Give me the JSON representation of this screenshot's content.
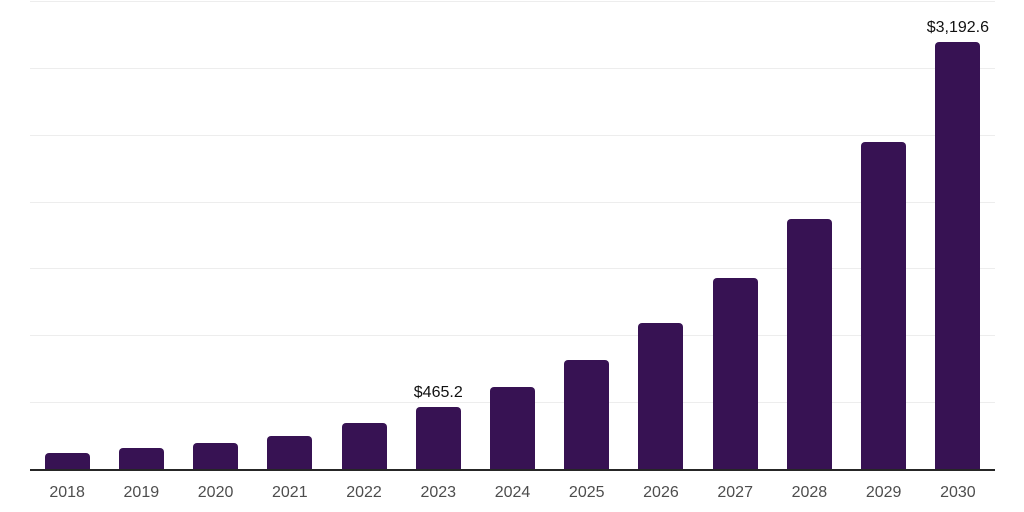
{
  "chart_data": {
    "type": "bar",
    "title": "",
    "xlabel": "",
    "ylabel": "",
    "categories": [
      "2018",
      "2019",
      "2020",
      "2021",
      "2022",
      "2023",
      "2024",
      "2025",
      "2026",
      "2027",
      "2028",
      "2029",
      "2030"
    ],
    "values": [
      119,
      156,
      197,
      245,
      347,
      465.2,
      617,
      818,
      1090,
      1425,
      1870,
      2445,
      3192.6
    ],
    "bar_labels": [
      "",
      "",
      "",
      "",
      "",
      "$465.2",
      "",
      "",
      "",
      "",
      "",
      "",
      "$3,192.6"
    ],
    "ylim": [
      0,
      3500
    ],
    "grid_interval": 500,
    "grid": "horizontal",
    "legend_position": "none",
    "y_axis_tick_labels_visible": false,
    "colors": {
      "bar": "#371253",
      "axis_line": "#262626",
      "gridline": "#ededed",
      "tick_label": "#4d4d4d",
      "data_label": "#111111",
      "background": "#ffffff"
    }
  }
}
